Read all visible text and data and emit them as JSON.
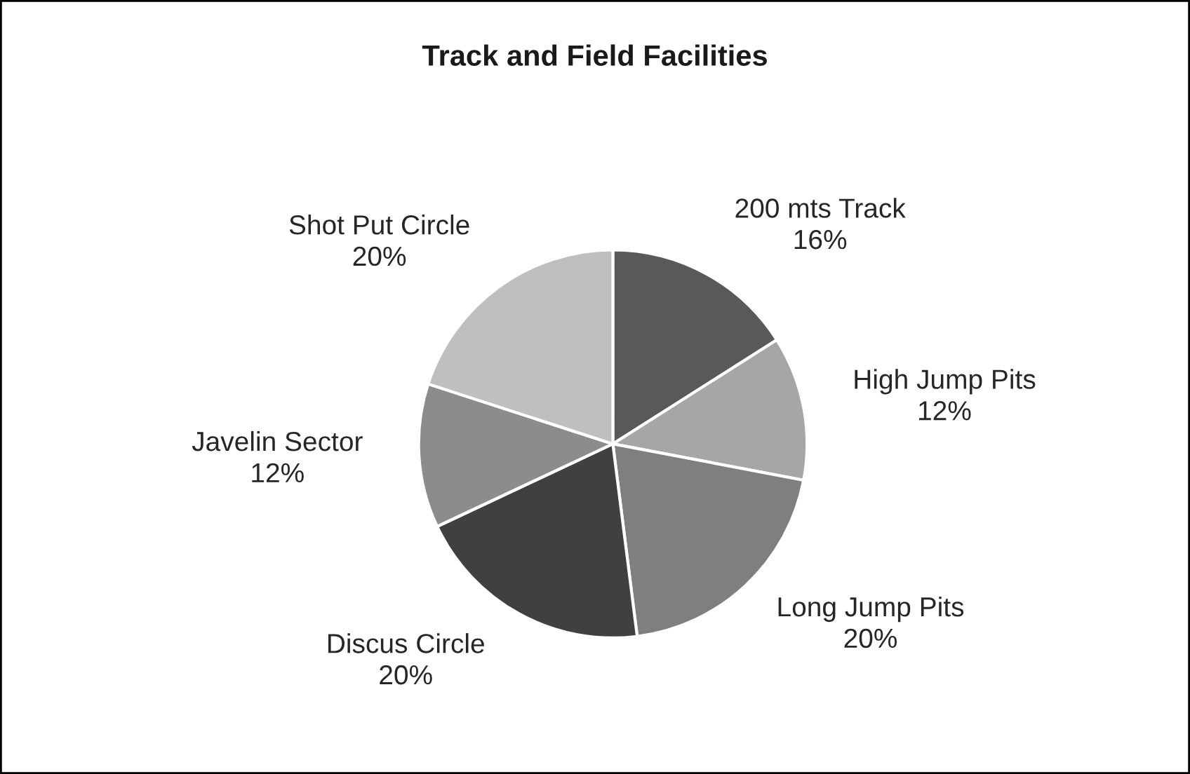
{
  "chart_data": {
    "type": "pie",
    "title": "Track and Field Facilities",
    "categories": [
      "200 mts Track",
      "High Jump Pits",
      "Long Jump Pits",
      "Discus Circle",
      "Javelin Sector",
      "Shot Put Circle"
    ],
    "values": [
      16,
      12,
      20,
      20,
      12,
      20
    ],
    "value_labels": [
      "16%",
      "12%",
      "20%",
      "20%",
      "12%",
      "20%"
    ],
    "colors": [
      "#595959",
      "#a6a6a6",
      "#7f7f7f",
      "#404040",
      "#8c8c8c",
      "#bfbfbf"
    ],
    "legend": false
  }
}
